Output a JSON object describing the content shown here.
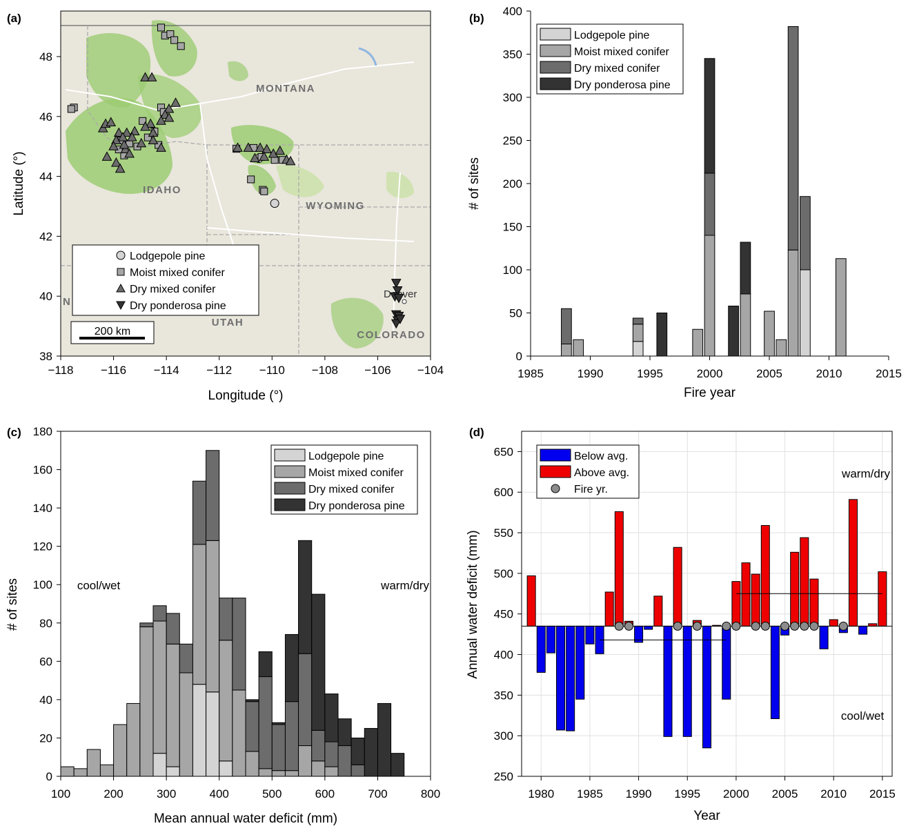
{
  "colors": {
    "lodgepole": "#d4d4d4",
    "moist": "#a6a6a6",
    "drymixed": "#6c6c6c",
    "ponderosa": "#333333",
    "below": "#0000ee",
    "above": "#ee0000",
    "fire_marker": "#8c8c8c",
    "map_bg": "#e9e6dc",
    "forest": "#9ccc73",
    "public_land": "#c5df9e"
  },
  "panels": {
    "a": {
      "label": "(a)",
      "xlabel": "Longitude (°)",
      "ylabel": "Latitude (°)",
      "xticks": [
        "−118",
        "−116",
        "−114",
        "−112",
        "−110",
        "−108",
        "−106",
        "−104"
      ],
      "yticks": [
        "38",
        "40",
        "42",
        "44",
        "46",
        "48"
      ],
      "place_labels": [
        "MONTANA",
        "IDAHO",
        "WYOMING",
        "UTAH",
        "COLORADO",
        "Denver",
        "N"
      ],
      "scale_bar": "200 km",
      "legend": [
        "Lodgepole pine",
        "Moist mixed conifer",
        "Dry mixed conifer",
        "Dry ponderosa pine"
      ]
    },
    "b": {
      "label": "(b)",
      "legend": [
        "Lodgepole pine",
        "Moist mixed conifer",
        "Dry mixed conifer",
        "Dry ponderosa pine"
      ]
    },
    "c": {
      "label": "(c)",
      "annotations": [
        "cool/wet",
        "warm/dry"
      ],
      "legend": [
        "Lodgepole pine",
        "Moist mixed conifer",
        "Dry mixed conifer",
        "Dry ponderosa pine"
      ]
    },
    "d": {
      "label": "(d)",
      "annotations": [
        "warm/dry",
        "cool/wet"
      ],
      "legend": [
        "Below avg.",
        "Above avg.",
        "Fire yr."
      ]
    }
  },
  "chart_data": [
    {
      "panel": "a",
      "type": "scatter",
      "xlabel": "Longitude (°)",
      "ylabel": "Latitude (°)",
      "xlim": [
        -118,
        -104
      ],
      "ylim": [
        38,
        49.5
      ],
      "series": [
        {
          "name": "Lodgepole pine",
          "marker": "circle",
          "points": [
            [
              -109.9,
              43.1
            ],
            [
              -110.5,
              44.6
            ]
          ]
        },
        {
          "name": "Moist mixed conifer",
          "marker": "square",
          "points": [
            [
              -117.5,
              46.3
            ],
            [
              -117.6,
              46.25
            ],
            [
              -114.2,
              48.97
            ],
            [
              -114.05,
              48.7
            ],
            [
              -113.85,
              48.75
            ],
            [
              -113.7,
              48.55
            ],
            [
              -113.45,
              48.35
            ],
            [
              -114.2,
              46.3
            ],
            [
              -114.1,
              46.15
            ],
            [
              -114.9,
              45.85
            ],
            [
              -114.45,
              45.5
            ],
            [
              -114.7,
              45.3
            ],
            [
              -115.4,
              45.1
            ],
            [
              -115.7,
              45.2
            ],
            [
              -115.1,
              45.0
            ],
            [
              -115.6,
              44.7
            ],
            [
              -114.3,
              45.05
            ],
            [
              -111.35,
              44.92
            ],
            [
              -110.7,
              44.95
            ],
            [
              -110.8,
              43.9
            ],
            [
              -110.35,
              43.55
            ],
            [
              -110.3,
              43.5
            ],
            [
              -110.4,
              44.65
            ],
            [
              -109.9,
              44.55
            ],
            [
              -109.6,
              44.55
            ],
            [
              -115.8,
              44.9
            ]
          ]
        },
        {
          "name": "Dry mixed conifer",
          "marker": "triangle-up",
          "points": [
            [
              -114.8,
              47.3
            ],
            [
              -114.55,
              47.3
            ],
            [
              -113.65,
              46.45
            ],
            [
              -113.9,
              46.25
            ],
            [
              -114.05,
              46.05
            ],
            [
              -114.2,
              45.85
            ],
            [
              -113.9,
              45.95
            ],
            [
              -114.6,
              45.75
            ],
            [
              -114.8,
              45.65
            ],
            [
              -114.5,
              45.45
            ],
            [
              -114.95,
              45.1
            ],
            [
              -114.5,
              45.2
            ],
            [
              -114.2,
              44.95
            ],
            [
              -116.4,
              45.6
            ],
            [
              -116.3,
              45.75
            ],
            [
              -116.1,
              45.8
            ],
            [
              -115.8,
              45.45
            ],
            [
              -115.5,
              45.45
            ],
            [
              -115.2,
              45.5
            ],
            [
              -115.3,
              45.3
            ],
            [
              -116.25,
              44.65
            ],
            [
              -115.9,
              44.45
            ],
            [
              -115.75,
              44.25
            ],
            [
              -115.55,
              44.9
            ],
            [
              -115.4,
              44.75
            ],
            [
              -115.6,
              45.05
            ],
            [
              -115.9,
              45.2
            ],
            [
              -115.65,
              45.3
            ],
            [
              -111.3,
              44.95
            ],
            [
              -110.9,
              44.95
            ],
            [
              -110.65,
              44.6
            ],
            [
              -110.45,
              44.95
            ],
            [
              -110.2,
              44.9
            ],
            [
              -109.95,
              44.75
            ],
            [
              -109.7,
              44.85
            ],
            [
              -109.45,
              44.55
            ],
            [
              -109.3,
              44.5
            ],
            [
              -110.3,
              44.65
            ],
            [
              -116.0,
              45.0
            ]
          ]
        },
        {
          "name": "Dry ponderosa pine",
          "marker": "triangle-down",
          "points": [
            [
              -105.3,
              40.45
            ],
            [
              -105.25,
              40.2
            ],
            [
              -105.35,
              40.0
            ],
            [
              -105.2,
              39.95
            ],
            [
              -105.3,
              39.4
            ],
            [
              -105.2,
              39.35
            ],
            [
              -105.25,
              39.2
            ],
            [
              -105.3,
              39.1
            ],
            [
              -105.15,
              39.25
            ]
          ]
        }
      ]
    },
    {
      "panel": "b",
      "type": "bar",
      "stacked": true,
      "xlabel": "Fire year",
      "ylabel": "# of sites",
      "xlim": [
        1985,
        2015
      ],
      "ylim": [
        0,
        400
      ],
      "x": [
        1988,
        1989,
        1994,
        1996,
        1999,
        2000,
        2002,
        2003,
        2005,
        2006,
        2007,
        2008,
        2011
      ],
      "series": [
        {
          "name": "Lodgepole pine",
          "values": [
            0,
            0,
            17,
            0,
            0,
            0,
            0,
            0,
            0,
            0,
            0,
            100,
            0
          ]
        },
        {
          "name": "Moist mixed conifer",
          "values": [
            14,
            19,
            20,
            0,
            31,
            140,
            0,
            72,
            52,
            19,
            123,
            0,
            113
          ]
        },
        {
          "name": "Dry mixed conifer",
          "values": [
            41,
            0,
            7,
            0,
            0,
            72,
            0,
            0,
            0,
            0,
            259,
            85,
            0
          ]
        },
        {
          "name": "Dry ponderosa pine",
          "values": [
            0,
            0,
            0,
            50,
            0,
            133,
            58,
            60,
            0,
            0,
            0,
            0,
            0
          ]
        }
      ]
    },
    {
      "panel": "c",
      "type": "bar",
      "stacked": true,
      "xlabel": "Mean annual water deficit (mm)",
      "ylabel": "# of sites",
      "xlim": [
        100,
        800
      ],
      "ylim": [
        0,
        180
      ],
      "bin_width": 25,
      "bin_centers": [
        112.5,
        137.5,
        162.5,
        187.5,
        212.5,
        237.5,
        262.5,
        287.5,
        312.5,
        337.5,
        362.5,
        387.5,
        412.5,
        437.5,
        462.5,
        487.5,
        512.5,
        537.5,
        562.5,
        587.5,
        612.5,
        637.5,
        662.5,
        687.5,
        712.5,
        737.5
      ],
      "series": [
        {
          "name": "Lodgepole pine",
          "values": [
            0,
            0,
            0,
            0,
            0,
            0,
            0,
            12,
            5,
            0,
            48,
            44,
            8,
            0,
            0,
            0,
            0,
            0,
            0,
            0,
            0,
            0,
            0,
            0,
            0,
            0
          ]
        },
        {
          "name": "Moist mixed conifer",
          "values": [
            5,
            4,
            14,
            6,
            27,
            38,
            78,
            69,
            64,
            54,
            73,
            79,
            63,
            45,
            13,
            4,
            3,
            3,
            16,
            8,
            5,
            0,
            0,
            0,
            0,
            0
          ]
        },
        {
          "name": "Dry mixed conifer",
          "values": [
            0,
            0,
            0,
            0,
            0,
            0,
            2,
            8,
            16,
            15,
            33,
            47,
            22,
            48,
            26,
            48,
            24,
            36,
            48,
            16,
            13,
            16,
            6,
            0,
            0,
            0
          ]
        },
        {
          "name": "Dry ponderosa pine",
          "values": [
            0,
            0,
            0,
            0,
            0,
            0,
            0,
            0,
            0,
            0,
            0,
            0,
            0,
            0,
            1,
            13,
            1,
            35,
            59,
            71,
            25,
            14,
            14,
            25,
            38,
            12
          ]
        }
      ]
    },
    {
      "panel": "d",
      "type": "bar",
      "xlabel": "Year",
      "ylabel": "Annual water deficit (mm)",
      "xlim": [
        1978,
        2016
      ],
      "ylim": [
        250,
        675
      ],
      "baseline": 435,
      "mean_lines": [
        {
          "x": [
            1986,
            1999
          ],
          "y": 418
        },
        {
          "x": [
            2000,
            2015
          ],
          "y": 475
        }
      ],
      "x": [
        1979,
        1980,
        1981,
        1982,
        1983,
        1984,
        1985,
        1986,
        1987,
        1988,
        1989,
        1990,
        1991,
        1992,
        1993,
        1994,
        1995,
        1996,
        1997,
        1998,
        1999,
        2000,
        2001,
        2002,
        2003,
        2004,
        2005,
        2006,
        2007,
        2008,
        2009,
        2010,
        2011,
        2012,
        2013,
        2014,
        2015
      ],
      "values": [
        497,
        378,
        402,
        307,
        306,
        345,
        413,
        401,
        477,
        576,
        441,
        415,
        431,
        472,
        299,
        532,
        299,
        442,
        285,
        436,
        345,
        490,
        513,
        499,
        559,
        321,
        424,
        526,
        544,
        493,
        407,
        443,
        427,
        591,
        425,
        438,
        502
      ],
      "fire_years": [
        1988,
        1989,
        1994,
        1996,
        1999,
        2000,
        2002,
        2003,
        2005,
        2006,
        2007,
        2008,
        2011
      ]
    }
  ]
}
